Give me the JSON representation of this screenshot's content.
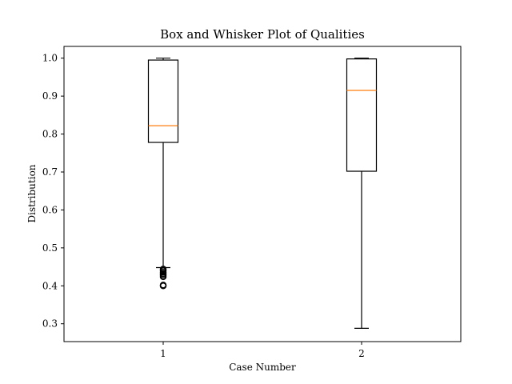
{
  "chart_data": {
    "type": "box",
    "title": "Box and Whisker Plot of Qualities",
    "xlabel": "Case Number",
    "ylabel": "Distribution",
    "ylim": [
      0.253,
      1.031
    ],
    "yticks": [
      "0.3",
      "0.4",
      "0.5",
      "0.6",
      "0.7",
      "0.8",
      "0.9",
      "1.0"
    ],
    "categories": [
      "1",
      "2"
    ],
    "boxes": [
      {
        "q1": 0.778,
        "median": 0.822,
        "q3": 0.995,
        "whisker_low": 0.448,
        "whisker_high": 1.0,
        "outliers": [
          0.444,
          0.44,
          0.436,
          0.432,
          0.428,
          0.424,
          0.402,
          0.4
        ]
      },
      {
        "q1": 0.702,
        "median": 0.915,
        "q3": 0.998,
        "whisker_low": 0.288,
        "whisker_high": 1.0,
        "outliers": []
      }
    ],
    "colors": {
      "box": "#000000",
      "median": "#ff7f0e",
      "background": "#ffffff"
    },
    "grid": false,
    "legend": "none"
  }
}
